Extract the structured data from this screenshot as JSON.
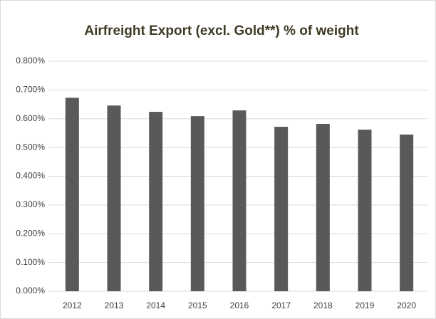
{
  "chart_data": {
    "type": "bar",
    "title": "Airfreight Export (excl. Gold**) % of weight",
    "categories": [
      "2012",
      "2013",
      "2014",
      "2015",
      "2016",
      "2017",
      "2018",
      "2019",
      "2020"
    ],
    "values": [
      0.673,
      0.646,
      0.624,
      0.609,
      0.629,
      0.572,
      0.582,
      0.562,
      0.545
    ],
    "color": "#595959",
    "ylim": [
      0,
      0.8
    ],
    "yticks": [
      {
        "value": 0,
        "label": "0.000%"
      },
      {
        "value": 0.1,
        "label": "0.100%"
      },
      {
        "value": 0.2,
        "label": "0.200%"
      },
      {
        "value": 0.3,
        "label": "0.300%"
      },
      {
        "value": 0.4,
        "label": "0.400%"
      },
      {
        "value": 0.5,
        "label": "0.500%"
      },
      {
        "value": 0.6,
        "label": "0.600%"
      },
      {
        "value": 0.7,
        "label": "0.700%"
      },
      {
        "value": 0.8,
        "label": "0.800%"
      }
    ],
    "grid": true
  }
}
